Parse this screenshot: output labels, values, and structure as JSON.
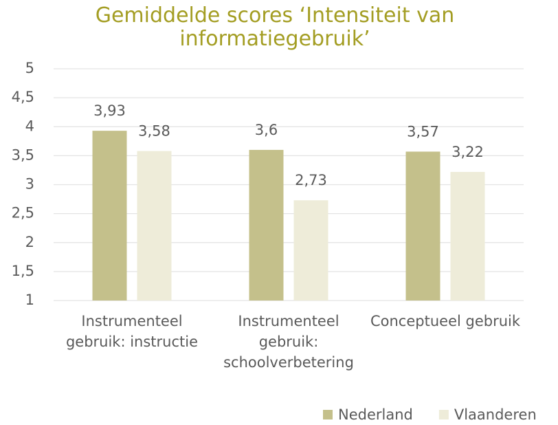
{
  "chart_data": {
    "type": "bar",
    "title": "Gemiddelde scores ‘Intensiteit van informatiegebruik’",
    "categories": [
      "Instrumenteel gebruik: instructie",
      "Instrumenteel gebruik: schoolverbetering",
      "Conceptueel gebruik"
    ],
    "series": [
      {
        "name": "Nederland",
        "color": "#c4c08b",
        "values": [
          3.93,
          3.6,
          3.57
        ],
        "value_labels": [
          "3,93",
          "3,6",
          "3,57"
        ]
      },
      {
        "name": "Vlaanderen",
        "color": "#eeecd9",
        "values": [
          3.58,
          2.73,
          3.22
        ],
        "value_labels": [
          "3,58",
          "2,73",
          "3,22"
        ]
      }
    ],
    "ylim": [
      1,
      5
    ],
    "yticks": [
      1,
      {
        "value": 1.5,
        "label": "1,5"
      },
      2,
      {
        "value": 2.5,
        "label": "2,5"
      },
      3,
      {
        "value": 3.5,
        "label": "3,5"
      },
      4,
      {
        "value": 4.5,
        "label": "4,5"
      },
      5
    ],
    "grid": true,
    "legend": "bottom-right"
  }
}
